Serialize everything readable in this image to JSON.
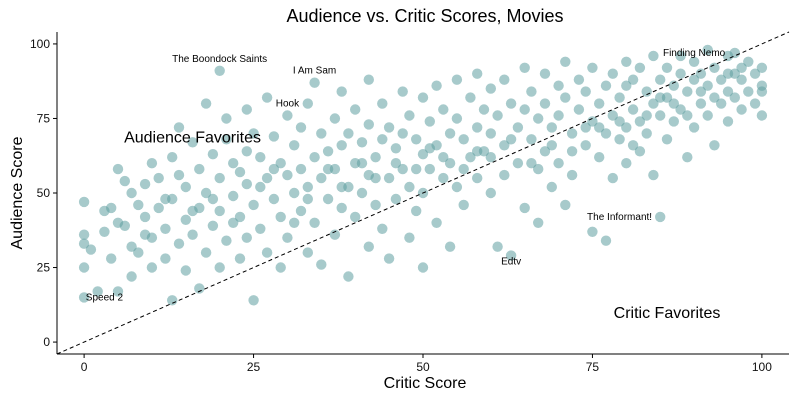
{
  "chart_data": {
    "type": "scatter",
    "title": "Audience vs. Critic Scores, Movies",
    "xlabel": "Critic Score",
    "ylabel": "Audience Score",
    "xlim": [
      -4,
      104
    ],
    "ylim": [
      -4,
      104
    ],
    "xticks": [
      0,
      25,
      50,
      75,
      100
    ],
    "yticks": [
      0,
      25,
      50,
      75,
      100
    ],
    "point_color": "#5f9ea0",
    "point_opacity": 0.55,
    "reference_line": {
      "style": "dashed",
      "from": [
        -4,
        -4
      ],
      "to": [
        104,
        104
      ]
    },
    "grid": false,
    "annotations": [
      {
        "text": "The Boondock Saints",
        "x": 20,
        "y": 91,
        "label_x": 20,
        "label_y": 94,
        "size": "small"
      },
      {
        "text": "I Am Sam",
        "x": 34,
        "y": 87,
        "label_x": 34,
        "label_y": 90,
        "size": "small"
      },
      {
        "text": "Hook",
        "x": 30,
        "y": 76,
        "label_x": 30,
        "label_y": 79,
        "size": "small"
      },
      {
        "text": "Finding Nemo",
        "x": 96,
        "y": 97,
        "label_x": 90,
        "label_y": 96,
        "size": "small"
      },
      {
        "text": "The Informant!",
        "x": 75,
        "y": 37,
        "label_x": 79,
        "label_y": 41,
        "size": "small"
      },
      {
        "text": "Edtv",
        "x": 63,
        "y": 29,
        "label_x": 63,
        "label_y": 26,
        "size": "small"
      },
      {
        "text": "Speed 2",
        "x": 0,
        "y": 15,
        "label_x": 3,
        "label_y": 14,
        "size": "small"
      },
      {
        "text": "Audience Favorites",
        "label_x": 16,
        "label_y": 67,
        "size": "large"
      },
      {
        "text": "Critic Favorites",
        "label_x": 86,
        "label_y": 8,
        "size": "large"
      }
    ],
    "points": [
      {
        "x": 0,
        "y": 15
      },
      {
        "x": 0,
        "y": 25
      },
      {
        "x": 0,
        "y": 36
      },
      {
        "x": 0,
        "y": 47
      },
      {
        "x": 0,
        "y": 33
      },
      {
        "x": 1,
        "y": 31
      },
      {
        "x": 2,
        "y": 17
      },
      {
        "x": 3,
        "y": 44
      },
      {
        "x": 3,
        "y": 37
      },
      {
        "x": 4,
        "y": 28
      },
      {
        "x": 5,
        "y": 58
      },
      {
        "x": 5,
        "y": 40
      },
      {
        "x": 5,
        "y": 17
      },
      {
        "x": 6,
        "y": 54
      },
      {
        "x": 6,
        "y": 39
      },
      {
        "x": 7,
        "y": 32
      },
      {
        "x": 7,
        "y": 22
      },
      {
        "x": 8,
        "y": 46
      },
      {
        "x": 8,
        "y": 30
      },
      {
        "x": 9,
        "y": 53
      },
      {
        "x": 9,
        "y": 42
      },
      {
        "x": 10,
        "y": 35
      },
      {
        "x": 10,
        "y": 25
      },
      {
        "x": 10,
        "y": 60
      },
      {
        "x": 11,
        "y": 45
      },
      {
        "x": 11,
        "y": 55
      },
      {
        "x": 12,
        "y": 38
      },
      {
        "x": 12,
        "y": 28
      },
      {
        "x": 13,
        "y": 62
      },
      {
        "x": 13,
        "y": 48
      },
      {
        "x": 13,
        "y": 14
      },
      {
        "x": 14,
        "y": 33
      },
      {
        "x": 14,
        "y": 72
      },
      {
        "x": 15,
        "y": 52
      },
      {
        "x": 15,
        "y": 41
      },
      {
        "x": 15,
        "y": 24
      },
      {
        "x": 16,
        "y": 67
      },
      {
        "x": 16,
        "y": 36
      },
      {
        "x": 17,
        "y": 58
      },
      {
        "x": 17,
        "y": 45
      },
      {
        "x": 17,
        "y": 18
      },
      {
        "x": 18,
        "y": 80
      },
      {
        "x": 18,
        "y": 50
      },
      {
        "x": 18,
        "y": 30
      },
      {
        "x": 19,
        "y": 63
      },
      {
        "x": 19,
        "y": 39
      },
      {
        "x": 20,
        "y": 91
      },
      {
        "x": 20,
        "y": 55
      },
      {
        "x": 20,
        "y": 44
      },
      {
        "x": 20,
        "y": 25
      },
      {
        "x": 21,
        "y": 75
      },
      {
        "x": 21,
        "y": 68
      },
      {
        "x": 21,
        "y": 34
      },
      {
        "x": 22,
        "y": 60
      },
      {
        "x": 22,
        "y": 49
      },
      {
        "x": 23,
        "y": 57
      },
      {
        "x": 23,
        "y": 42
      },
      {
        "x": 23,
        "y": 28
      },
      {
        "x": 24,
        "y": 78
      },
      {
        "x": 24,
        "y": 64
      },
      {
        "x": 24,
        "y": 53
      },
      {
        "x": 25,
        "y": 70
      },
      {
        "x": 25,
        "y": 46
      },
      {
        "x": 25,
        "y": 14
      },
      {
        "x": 26,
        "y": 62
      },
      {
        "x": 26,
        "y": 38
      },
      {
        "x": 27,
        "y": 82
      },
      {
        "x": 27,
        "y": 55
      },
      {
        "x": 27,
        "y": 30
      },
      {
        "x": 28,
        "y": 69
      },
      {
        "x": 28,
        "y": 48
      },
      {
        "x": 29,
        "y": 60
      },
      {
        "x": 29,
        "y": 42
      },
      {
        "x": 29,
        "y": 25
      },
      {
        "x": 30,
        "y": 76
      },
      {
        "x": 30,
        "y": 56
      },
      {
        "x": 30,
        "y": 35
      },
      {
        "x": 31,
        "y": 66
      },
      {
        "x": 31,
        "y": 50
      },
      {
        "x": 32,
        "y": 72
      },
      {
        "x": 32,
        "y": 58
      },
      {
        "x": 32,
        "y": 44
      },
      {
        "x": 33,
        "y": 80
      },
      {
        "x": 33,
        "y": 52
      },
      {
        "x": 33,
        "y": 30
      },
      {
        "x": 34,
        "y": 87
      },
      {
        "x": 34,
        "y": 62
      },
      {
        "x": 34,
        "y": 40
      },
      {
        "x": 35,
        "y": 70
      },
      {
        "x": 35,
        "y": 55
      },
      {
        "x": 35,
        "y": 26
      },
      {
        "x": 36,
        "y": 64
      },
      {
        "x": 36,
        "y": 48
      },
      {
        "x": 37,
        "y": 75
      },
      {
        "x": 37,
        "y": 58
      },
      {
        "x": 37,
        "y": 36
      },
      {
        "x": 38,
        "y": 84
      },
      {
        "x": 38,
        "y": 66
      },
      {
        "x": 38,
        "y": 45
      },
      {
        "x": 39,
        "y": 70
      },
      {
        "x": 39,
        "y": 52
      },
      {
        "x": 39,
        "y": 22
      },
      {
        "x": 40,
        "y": 78
      },
      {
        "x": 40,
        "y": 60
      },
      {
        "x": 40,
        "y": 42
      },
      {
        "x": 41,
        "y": 67
      },
      {
        "x": 41,
        "y": 50
      },
      {
        "x": 42,
        "y": 88
      },
      {
        "x": 42,
        "y": 73
      },
      {
        "x": 42,
        "y": 56
      },
      {
        "x": 42,
        "y": 32
      },
      {
        "x": 43,
        "y": 62
      },
      {
        "x": 43,
        "y": 46
      },
      {
        "x": 44,
        "y": 80
      },
      {
        "x": 44,
        "y": 68
      },
      {
        "x": 44,
        "y": 38
      },
      {
        "x": 45,
        "y": 72
      },
      {
        "x": 45,
        "y": 55
      },
      {
        "x": 45,
        "y": 28
      },
      {
        "x": 46,
        "y": 65
      },
      {
        "x": 46,
        "y": 48
      },
      {
        "x": 47,
        "y": 84
      },
      {
        "x": 47,
        "y": 70
      },
      {
        "x": 47,
        "y": 58
      },
      {
        "x": 48,
        "y": 76
      },
      {
        "x": 48,
        "y": 52
      },
      {
        "x": 48,
        "y": 35
      },
      {
        "x": 49,
        "y": 68
      },
      {
        "x": 49,
        "y": 44
      },
      {
        "x": 50,
        "y": 82
      },
      {
        "x": 50,
        "y": 63
      },
      {
        "x": 50,
        "y": 50
      },
      {
        "x": 50,
        "y": 25
      },
      {
        "x": 51,
        "y": 74
      },
      {
        "x": 51,
        "y": 58
      },
      {
        "x": 52,
        "y": 86
      },
      {
        "x": 52,
        "y": 66
      },
      {
        "x": 52,
        "y": 40
      },
      {
        "x": 53,
        "y": 78
      },
      {
        "x": 53,
        "y": 55
      },
      {
        "x": 54,
        "y": 70
      },
      {
        "x": 54,
        "y": 60
      },
      {
        "x": 54,
        "y": 32
      },
      {
        "x": 55,
        "y": 88
      },
      {
        "x": 55,
        "y": 75
      },
      {
        "x": 55,
        "y": 52
      },
      {
        "x": 56,
        "y": 68
      },
      {
        "x": 56,
        "y": 46
      },
      {
        "x": 57,
        "y": 82
      },
      {
        "x": 57,
        "y": 62
      },
      {
        "x": 58,
        "y": 90
      },
      {
        "x": 58,
        "y": 72
      },
      {
        "x": 58,
        "y": 55
      },
      {
        "x": 59,
        "y": 78
      },
      {
        "x": 59,
        "y": 64
      },
      {
        "x": 60,
        "y": 85
      },
      {
        "x": 60,
        "y": 70
      },
      {
        "x": 60,
        "y": 50
      },
      {
        "x": 61,
        "y": 32
      },
      {
        "x": 61,
        "y": 76
      },
      {
        "x": 62,
        "y": 88
      },
      {
        "x": 62,
        "y": 66
      },
      {
        "x": 62,
        "y": 56
      },
      {
        "x": 63,
        "y": 80
      },
      {
        "x": 63,
        "y": 29
      },
      {
        "x": 64,
        "y": 72
      },
      {
        "x": 64,
        "y": 60
      },
      {
        "x": 65,
        "y": 92
      },
      {
        "x": 65,
        "y": 78
      },
      {
        "x": 65,
        "y": 45
      },
      {
        "x": 66,
        "y": 84
      },
      {
        "x": 66,
        "y": 68
      },
      {
        "x": 67,
        "y": 75
      },
      {
        "x": 67,
        "y": 58
      },
      {
        "x": 67,
        "y": 40
      },
      {
        "x": 68,
        "y": 90
      },
      {
        "x": 68,
        "y": 80
      },
      {
        "x": 68,
        "y": 64
      },
      {
        "x": 69,
        "y": 72
      },
      {
        "x": 69,
        "y": 52
      },
      {
        "x": 70,
        "y": 86
      },
      {
        "x": 70,
        "y": 76
      },
      {
        "x": 70,
        "y": 60
      },
      {
        "x": 71,
        "y": 94
      },
      {
        "x": 71,
        "y": 82
      },
      {
        "x": 71,
        "y": 46
      },
      {
        "x": 72,
        "y": 70
      },
      {
        "x": 72,
        "y": 56
      },
      {
        "x": 73,
        "y": 88
      },
      {
        "x": 73,
        "y": 78
      },
      {
        "x": 74,
        "y": 84
      },
      {
        "x": 74,
        "y": 66
      },
      {
        "x": 75,
        "y": 37
      },
      {
        "x": 75,
        "y": 92
      },
      {
        "x": 75,
        "y": 74
      },
      {
        "x": 76,
        "y": 80
      },
      {
        "x": 76,
        "y": 62
      },
      {
        "x": 77,
        "y": 86
      },
      {
        "x": 77,
        "y": 70
      },
      {
        "x": 77,
        "y": 34
      },
      {
        "x": 78,
        "y": 90
      },
      {
        "x": 78,
        "y": 76
      },
      {
        "x": 78,
        "y": 55
      },
      {
        "x": 79,
        "y": 82
      },
      {
        "x": 79,
        "y": 68
      },
      {
        "x": 80,
        "y": 94
      },
      {
        "x": 80,
        "y": 86
      },
      {
        "x": 80,
        "y": 72
      },
      {
        "x": 80,
        "y": 60
      },
      {
        "x": 81,
        "y": 78
      },
      {
        "x": 81,
        "y": 88
      },
      {
        "x": 82,
        "y": 92
      },
      {
        "x": 82,
        "y": 74
      },
      {
        "x": 82,
        "y": 64
      },
      {
        "x": 83,
        "y": 84
      },
      {
        "x": 83,
        "y": 70
      },
      {
        "x": 84,
        "y": 96
      },
      {
        "x": 84,
        "y": 80
      },
      {
        "x": 84,
        "y": 56
      },
      {
        "x": 85,
        "y": 88
      },
      {
        "x": 85,
        "y": 76
      },
      {
        "x": 85,
        "y": 42
      },
      {
        "x": 86,
        "y": 92
      },
      {
        "x": 86,
        "y": 82
      },
      {
        "x": 86,
        "y": 68
      },
      {
        "x": 87,
        "y": 86
      },
      {
        "x": 87,
        "y": 74
      },
      {
        "x": 88,
        "y": 96
      },
      {
        "x": 88,
        "y": 90
      },
      {
        "x": 88,
        "y": 78
      },
      {
        "x": 89,
        "y": 84
      },
      {
        "x": 89,
        "y": 62
      },
      {
        "x": 90,
        "y": 94
      },
      {
        "x": 90,
        "y": 88
      },
      {
        "x": 90,
        "y": 72
      },
      {
        "x": 91,
        "y": 80
      },
      {
        "x": 91,
        "y": 90
      },
      {
        "x": 92,
        "y": 98
      },
      {
        "x": 92,
        "y": 86
      },
      {
        "x": 92,
        "y": 76
      },
      {
        "x": 93,
        "y": 92
      },
      {
        "x": 93,
        "y": 66
      },
      {
        "x": 94,
        "y": 88
      },
      {
        "x": 94,
        "y": 80
      },
      {
        "x": 95,
        "y": 96
      },
      {
        "x": 95,
        "y": 84
      },
      {
        "x": 95,
        "y": 74
      },
      {
        "x": 96,
        "y": 97
      },
      {
        "x": 96,
        "y": 90
      },
      {
        "x": 96,
        "y": 82
      },
      {
        "x": 97,
        "y": 88
      },
      {
        "x": 97,
        "y": 78
      },
      {
        "x": 98,
        "y": 94
      },
      {
        "x": 98,
        "y": 84
      },
      {
        "x": 99,
        "y": 90
      },
      {
        "x": 99,
        "y": 80
      },
      {
        "x": 100,
        "y": 86
      },
      {
        "x": 100,
        "y": 76
      },
      {
        "x": 100,
        "y": 92
      },
      {
        "x": 100,
        "y": 84
      },
      {
        "x": 4,
        "y": 45
      },
      {
        "x": 7,
        "y": 50
      },
      {
        "x": 9,
        "y": 36
      },
      {
        "x": 12,
        "y": 48
      },
      {
        "x": 14,
        "y": 56
      },
      {
        "x": 16,
        "y": 44
      },
      {
        "x": 19,
        "y": 48
      },
      {
        "x": 22,
        "y": 40
      },
      {
        "x": 24,
        "y": 35
      },
      {
        "x": 26,
        "y": 52
      },
      {
        "x": 28,
        "y": 58
      },
      {
        "x": 31,
        "y": 40
      },
      {
        "x": 33,
        "y": 48
      },
      {
        "x": 36,
        "y": 58
      },
      {
        "x": 38,
        "y": 52
      },
      {
        "x": 41,
        "y": 60
      },
      {
        "x": 43,
        "y": 55
      },
      {
        "x": 46,
        "y": 60
      },
      {
        "x": 49,
        "y": 58
      },
      {
        "x": 51,
        "y": 65
      },
      {
        "x": 53,
        "y": 62
      },
      {
        "x": 56,
        "y": 58
      },
      {
        "x": 58,
        "y": 64
      },
      {
        "x": 60,
        "y": 62
      },
      {
        "x": 63,
        "y": 68
      },
      {
        "x": 66,
        "y": 60
      },
      {
        "x": 69,
        "y": 66
      },
      {
        "x": 72,
        "y": 64
      },
      {
        "x": 74,
        "y": 72
      },
      {
        "x": 76,
        "y": 72
      },
      {
        "x": 79,
        "y": 74
      },
      {
        "x": 81,
        "y": 66
      },
      {
        "x": 83,
        "y": 76
      },
      {
        "x": 85,
        "y": 82
      },
      {
        "x": 87,
        "y": 80
      },
      {
        "x": 89,
        "y": 76
      },
      {
        "x": 91,
        "y": 84
      },
      {
        "x": 93,
        "y": 82
      },
      {
        "x": 95,
        "y": 90
      },
      {
        "x": 97,
        "y": 92
      }
    ]
  }
}
